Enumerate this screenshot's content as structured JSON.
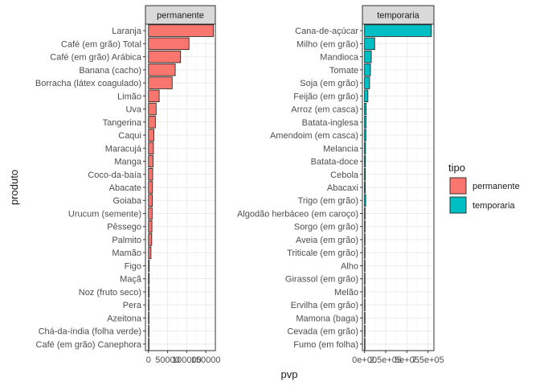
{
  "chart_data": {
    "type": "bar",
    "orientation": "horizontal",
    "facet_by": "tipo",
    "xlabel": "pvp",
    "ylabel": "produto",
    "grid": true,
    "legend": {
      "title": "tipo",
      "placement": "right",
      "entries": [
        {
          "label": "permanente",
          "color": "#F8766D"
        },
        {
          "label": "temporaria",
          "color": "#00BFC4"
        }
      ]
    },
    "panels": [
      {
        "strip": "permanente",
        "color": "#F8766D",
        "xlim": [
          -8000,
          175000
        ],
        "xticks": [
          0,
          50000,
          100000,
          150000
        ],
        "xtick_labels": [
          "0",
          "50000",
          "100000",
          "150000"
        ],
        "categories": [
          "Laranja",
          "Café (em grão) Total",
          "Café (em grão) Arábica",
          "Banana (cacho)",
          "Borracha (látex coagulado)",
          "Limão",
          "Uva",
          "Tangerina",
          "Caqui",
          "Maracujá",
          "Manga",
          "Coco-da-baía",
          "Abacate",
          "Goiaba",
          "Urucum (semente)",
          "Pêssego",
          "Palmito",
          "Mamão",
          "Figo",
          "Maçã",
          "Noz (fruto seco)",
          "Pera",
          "Azeitona",
          "Chá-da-índia (folha verde)",
          "Café (em grão) Canephora"
        ],
        "values": [
          170000,
          106000,
          84000,
          70000,
          62000,
          28000,
          20000,
          18000,
          14000,
          13000,
          12000,
          11000,
          10500,
          10000,
          9500,
          9000,
          8500,
          6500,
          2000,
          1800,
          1500,
          1200,
          1000,
          900,
          800
        ]
      },
      {
        "strip": "temporaria",
        "color": "#00BFC4",
        "xlim": [
          -25000,
          820000
        ],
        "xticks": [
          0,
          250000,
          500000,
          750000
        ],
        "xtick_labels": [
          "0e+00",
          "2.5e+05",
          "5e+05",
          "7.5e+05"
        ],
        "categories": [
          "Cana-de-açúcar",
          "Milho (em grão)",
          "Mandioca",
          "Tomate",
          "Soja (em grão)",
          "Feijão (em grão)",
          "Arroz (em casca)",
          "Batata-inglesa",
          "Amendoim (em casca)",
          "Melancia",
          "Batata-doce",
          "Cebola",
          "Abacaxi",
          "Trigo (em grão)",
          "Algodão herbáceo (em caroço)",
          "Sorgo (em grão)",
          "Aveia (em grão)",
          "Triticale (em grão)",
          "Alho",
          "Girassol (em grão)",
          "Melão",
          "Ervilha (em grão)",
          "Mamona (baga)",
          "Cevada (em grão)",
          "Fumo (em folha)"
        ],
        "values": [
          790000,
          120000,
          80000,
          70000,
          60000,
          40000,
          20000,
          18000,
          16000,
          12000,
          11000,
          10000,
          9000,
          14000,
          7000,
          6500,
          6000,
          5500,
          5000,
          4500,
          4000,
          3500,
          3000,
          2500,
          2000
        ]
      }
    ]
  }
}
